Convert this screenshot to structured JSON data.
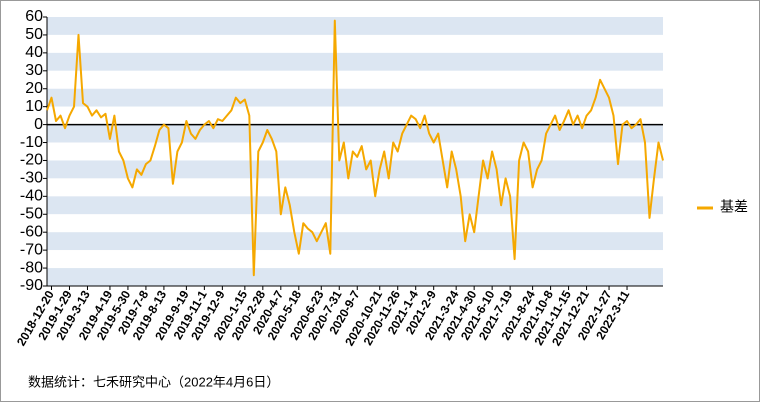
{
  "chart_data": {
    "type": "line",
    "source": "数据统计：七禾研究中心（2022年4月6日）",
    "legend": "right",
    "stripes": [
      "#dce6f2",
      "#ffffff"
    ],
    "categories": [
      null,
      "2018-12-20",
      null,
      null,
      null,
      "2019-1-29",
      null,
      null,
      null,
      "2019-3-13",
      null,
      null,
      null,
      null,
      "2019-4-19",
      null,
      null,
      null,
      "2019-5-30",
      null,
      null,
      null,
      "2019-7-8",
      null,
      null,
      null,
      "2019-8-13",
      null,
      null,
      null,
      null,
      "2019-9-19",
      null,
      null,
      null,
      "2019-11-1",
      null,
      null,
      null,
      "2019-12-9",
      null,
      null,
      null,
      null,
      "2020-1-15",
      null,
      null,
      null,
      "2020-2-28",
      null,
      null,
      null,
      "2020-4-7",
      null,
      null,
      null,
      "2020-5-18",
      null,
      null,
      null,
      null,
      "2020-6-23",
      null,
      null,
      null,
      "2020-7-31",
      null,
      null,
      null,
      "2020-9-7",
      null,
      null,
      null,
      null,
      "2020-10-21",
      null,
      null,
      null,
      "2020-11-26",
      null,
      null,
      null,
      "2021-1-4",
      null,
      null,
      null,
      "2021-2-9",
      null,
      null,
      null,
      null,
      "2021-3-24",
      null,
      null,
      null,
      "2021-4-30",
      null,
      null,
      null,
      "2021-6-10",
      null,
      null,
      null,
      "2021-7-19",
      null,
      null,
      null,
      null,
      "2021-8-24",
      null,
      null,
      null,
      "2021-10-8",
      null,
      null,
      null,
      "2021-11-15",
      null,
      null,
      null,
      "2021-12-21",
      null,
      null,
      null,
      null,
      "2022-1-27",
      null,
      null,
      null,
      "2022-3-11",
      null,
      null,
      null,
      null,
      null,
      null,
      null,
      null
    ],
    "series": [
      {
        "name": "基差",
        "color": "#f5a800",
        "values": [
          8,
          15,
          2,
          5,
          -2,
          5,
          10,
          50,
          12,
          10,
          5,
          8,
          4,
          6,
          -8,
          5,
          -15,
          -20,
          -30,
          -35,
          -25,
          -28,
          -22,
          -20,
          -12,
          -3,
          0,
          -2,
          -33,
          -15,
          -10,
          2,
          -5,
          -8,
          -3,
          0,
          2,
          -2,
          3,
          2,
          5,
          8,
          15,
          12,
          14,
          5,
          -84,
          -15,
          -10,
          -3,
          -8,
          -15,
          -50,
          -35,
          -45,
          -60,
          -72,
          -55,
          -58,
          -60,
          -65,
          -60,
          -55,
          -72,
          58,
          -20,
          -10,
          -30,
          -15,
          -18,
          -12,
          -25,
          -20,
          -40,
          -25,
          -15,
          -30,
          -10,
          -15,
          -5,
          0,
          5,
          3,
          -2,
          5,
          -5,
          -10,
          -5,
          -20,
          -35,
          -15,
          -25,
          -40,
          -65,
          -50,
          -60,
          -40,
          -20,
          -30,
          -15,
          -25,
          -45,
          -30,
          -40,
          -75,
          -20,
          -10,
          -15,
          -35,
          -25,
          -20,
          -5,
          0,
          5,
          -3,
          2,
          8,
          0,
          5,
          -2,
          5,
          8,
          15,
          25,
          20,
          15,
          5,
          -22,
          0,
          2,
          -2,
          0,
          3,
          -10,
          -52,
          -30,
          -10,
          -20
        ]
      }
    ],
    "ylim": [
      -90,
      60
    ],
    "yticks": [
      60,
      50,
      40,
      30,
      20,
      10,
      0,
      -10,
      -20,
      -30,
      -40,
      -50,
      -60,
      -70,
      -80,
      -90
    ]
  }
}
